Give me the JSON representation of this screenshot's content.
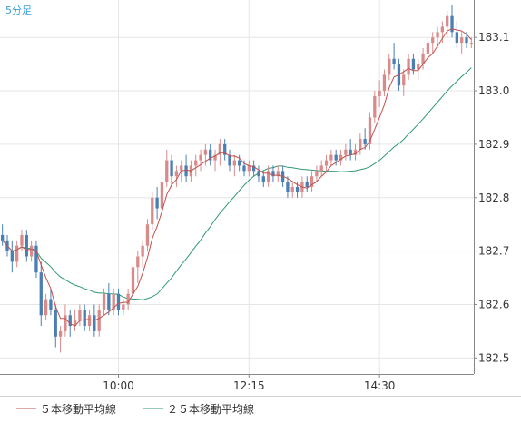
{
  "chart_data": {
    "type": "candlestick",
    "timeframe_label": "5分足",
    "x_tick_labels": [
      "10:00",
      "12:15",
      "14:30"
    ],
    "x_tick_index": [
      24,
      51,
      78
    ],
    "y_ticks": [
      182.5,
      182.6,
      182.7,
      182.8,
      182.9,
      183.0,
      183.1
    ],
    "ylim": [
      182.47,
      183.17
    ],
    "grid": true,
    "legend_position": "bottom-left",
    "colors": {
      "up": "#d98b8b",
      "down": "#4a7fb4",
      "ma5": "#c0504d",
      "ma25": "#2e9a72",
      "grid": "#e6e6e6",
      "axis": "#888888"
    },
    "series": [
      {
        "name": "５本移動平均線",
        "type": "ma",
        "period": 5
      },
      {
        "name": "２５本移動平均線",
        "type": "ma",
        "period": 25
      }
    ],
    "ohlc": [
      [
        182.73,
        182.75,
        182.71,
        182.72
      ],
      [
        182.72,
        182.73,
        182.69,
        182.7
      ],
      [
        182.7,
        182.72,
        182.66,
        182.68
      ],
      [
        182.68,
        182.72,
        182.67,
        182.71
      ],
      [
        182.71,
        182.74,
        182.7,
        182.73
      ],
      [
        182.73,
        182.74,
        182.68,
        182.69
      ],
      [
        182.69,
        182.72,
        182.68,
        182.71
      ],
      [
        182.71,
        182.72,
        182.65,
        182.66
      ],
      [
        182.66,
        182.68,
        182.56,
        182.58
      ],
      [
        182.58,
        182.62,
        182.57,
        182.61
      ],
      [
        182.61,
        182.63,
        182.58,
        182.59
      ],
      [
        182.59,
        182.6,
        182.52,
        182.54
      ],
      [
        182.54,
        182.56,
        182.51,
        182.55
      ],
      [
        182.55,
        182.6,
        182.54,
        182.58
      ],
      [
        182.58,
        182.59,
        182.54,
        182.56
      ],
      [
        182.56,
        182.59,
        182.55,
        182.57
      ],
      [
        182.57,
        182.6,
        182.56,
        182.59
      ],
      [
        182.59,
        182.6,
        182.55,
        182.56
      ],
      [
        182.56,
        182.59,
        182.55,
        182.58
      ],
      [
        182.58,
        182.6,
        182.54,
        182.55
      ],
      [
        182.55,
        182.6,
        182.54,
        182.59
      ],
      [
        182.59,
        182.63,
        182.58,
        182.62
      ],
      [
        182.62,
        182.64,
        182.58,
        182.59
      ],
      [
        182.59,
        182.63,
        182.58,
        182.62
      ],
      [
        182.62,
        182.63,
        182.58,
        182.59
      ],
      [
        182.59,
        182.61,
        182.58,
        182.6
      ],
      [
        182.6,
        182.63,
        182.59,
        182.62
      ],
      [
        182.62,
        182.68,
        182.61,
        182.67
      ],
      [
        182.67,
        182.7,
        182.64,
        182.69
      ],
      [
        182.69,
        182.72,
        182.67,
        182.71
      ],
      [
        182.71,
        182.76,
        182.7,
        182.75
      ],
      [
        182.75,
        182.81,
        182.74,
        182.8
      ],
      [
        182.8,
        182.82,
        182.76,
        182.78
      ],
      [
        182.78,
        182.84,
        182.77,
        182.83
      ],
      [
        182.83,
        182.89,
        182.82,
        182.87
      ],
      [
        182.87,
        182.88,
        182.82,
        182.84
      ],
      [
        182.84,
        182.86,
        182.82,
        182.85
      ],
      [
        182.85,
        182.87,
        182.83,
        182.86
      ],
      [
        182.86,
        182.88,
        182.83,
        182.84
      ],
      [
        182.84,
        182.87,
        182.83,
        182.86
      ],
      [
        182.86,
        182.88,
        182.84,
        182.87
      ],
      [
        182.87,
        182.89,
        182.85,
        182.88
      ],
      [
        182.88,
        182.9,
        182.86,
        182.89
      ],
      [
        182.89,
        182.9,
        182.86,
        182.87
      ],
      [
        182.87,
        182.89,
        182.85,
        182.88
      ],
      [
        182.88,
        182.91,
        182.86,
        182.9
      ],
      [
        182.9,
        182.91,
        182.87,
        182.88
      ],
      [
        182.88,
        182.89,
        182.85,
        182.86
      ],
      [
        182.86,
        182.88,
        182.84,
        182.87
      ],
      [
        182.87,
        182.88,
        182.85,
        182.86
      ],
      [
        182.86,
        182.87,
        182.84,
        182.85
      ],
      [
        182.85,
        182.87,
        182.84,
        182.86
      ],
      [
        182.86,
        182.87,
        182.84,
        182.85
      ],
      [
        182.85,
        182.86,
        182.83,
        182.84
      ],
      [
        182.84,
        182.85,
        182.82,
        182.83
      ],
      [
        182.83,
        182.86,
        182.82,
        182.85
      ],
      [
        182.85,
        182.86,
        182.83,
        182.84
      ],
      [
        182.84,
        182.86,
        182.83,
        182.85
      ],
      [
        182.85,
        182.86,
        182.82,
        182.83
      ],
      [
        182.83,
        182.84,
        182.8,
        182.81
      ],
      [
        182.81,
        182.83,
        182.8,
        182.82
      ],
      [
        182.82,
        182.83,
        182.8,
        182.81
      ],
      [
        182.81,
        182.84,
        182.8,
        182.83
      ],
      [
        182.83,
        182.84,
        182.81,
        182.82
      ],
      [
        182.82,
        182.85,
        182.81,
        182.84
      ],
      [
        182.84,
        182.86,
        182.83,
        182.85
      ],
      [
        182.85,
        182.87,
        182.84,
        182.86
      ],
      [
        182.86,
        182.88,
        182.85,
        182.87
      ],
      [
        182.87,
        182.89,
        182.86,
        182.88
      ],
      [
        182.88,
        182.89,
        182.86,
        182.87
      ],
      [
        182.87,
        182.89,
        182.86,
        182.88
      ],
      [
        182.88,
        182.9,
        182.87,
        182.89
      ],
      [
        182.89,
        182.91,
        182.87,
        182.88
      ],
      [
        182.88,
        182.9,
        182.87,
        182.89
      ],
      [
        182.89,
        182.92,
        182.88,
        182.91
      ],
      [
        182.91,
        182.93,
        182.89,
        182.9
      ],
      [
        182.9,
        182.96,
        182.89,
        182.95
      ],
      [
        182.95,
        183.0,
        182.94,
        182.99
      ],
      [
        182.99,
        183.02,
        182.97,
        183.0
      ],
      [
        183.0,
        183.04,
        182.99,
        183.03
      ],
      [
        183.03,
        183.07,
        183.02,
        183.06
      ],
      [
        183.06,
        183.09,
        183.04,
        183.05
      ],
      [
        183.05,
        183.06,
        183.0,
        183.01
      ],
      [
        183.01,
        183.04,
        182.99,
        183.03
      ],
      [
        183.03,
        183.07,
        183.02,
        183.06
      ],
      [
        183.06,
        183.07,
        183.03,
        183.04
      ],
      [
        183.04,
        183.06,
        183.02,
        183.05
      ],
      [
        183.05,
        183.08,
        183.04,
        183.07
      ],
      [
        183.07,
        183.1,
        183.06,
        183.09
      ],
      [
        183.09,
        183.11,
        183.07,
        183.1
      ],
      [
        183.1,
        183.12,
        183.08,
        183.11
      ],
      [
        183.11,
        183.13,
        183.09,
        183.12
      ],
      [
        183.12,
        183.15,
        183.1,
        183.14
      ],
      [
        183.14,
        183.16,
        183.1,
        183.11
      ],
      [
        183.11,
        183.13,
        183.08,
        183.09
      ],
      [
        183.09,
        183.11,
        183.07,
        183.1
      ],
      [
        183.1,
        183.11,
        183.08,
        183.09
      ],
      [
        183.09,
        183.1,
        183.08,
        183.09
      ]
    ]
  }
}
